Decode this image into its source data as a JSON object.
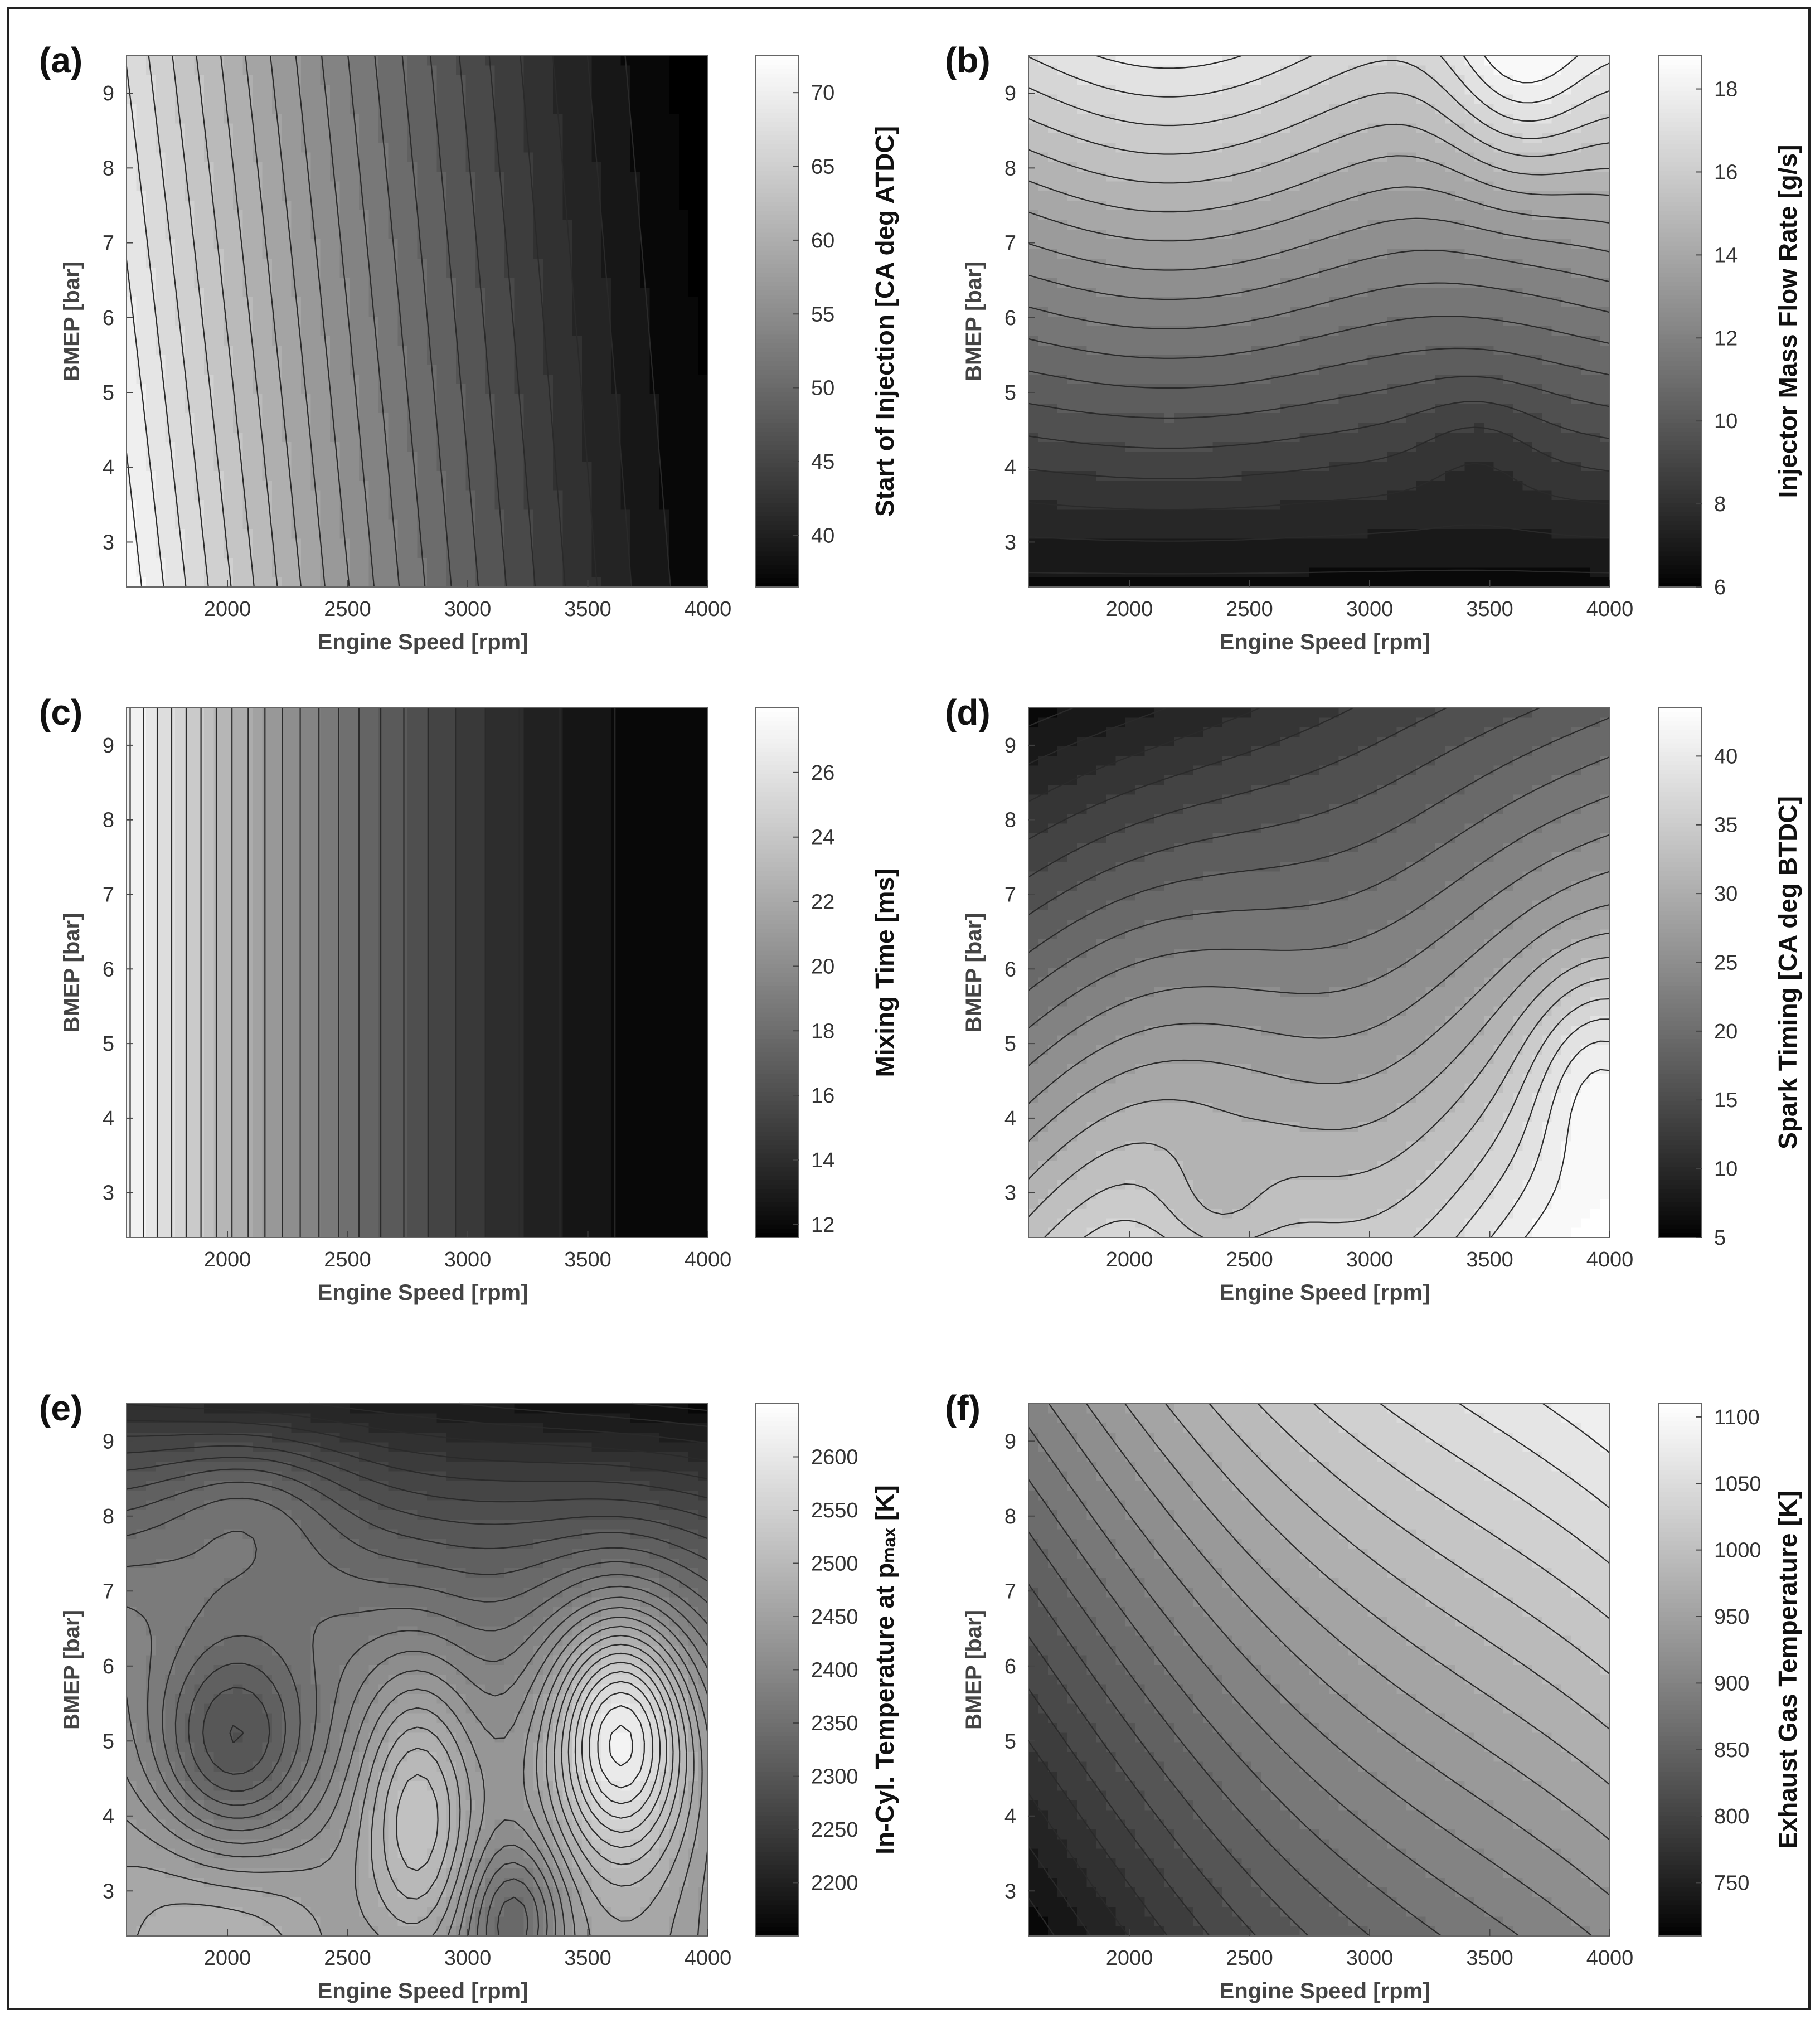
{
  "chart_data": [
    {
      "type": "heatmap",
      "panel_label": "(a)",
      "xlabel": "Engine Speed [rpm]",
      "ylabel": "BMEP [bar]",
      "colorbar_label": "Start of Injection [CA deg ATDC]",
      "xlim": [
        1580,
        4000
      ],
      "ylim": [
        2.4,
        9.5
      ],
      "xticks": [
        2000,
        2500,
        3000,
        3500,
        4000
      ],
      "yticks": [
        3,
        4,
        5,
        6,
        7,
        8,
        9
      ],
      "clim": [
        36.5,
        72.5
      ],
      "cticks": [
        40,
        45,
        50,
        55,
        60,
        65,
        70
      ],
      "z_corners": {
        "low_speed_low_bmep": 72.0,
        "low_speed_high_bmep": 68.0,
        "high_speed_low_bmep": 41.0,
        "high_speed_high_bmep": 37.0
      },
      "levels": 22
    },
    {
      "type": "heatmap",
      "panel_label": "(b)",
      "xlabel": "Engine Speed [rpm]",
      "ylabel": "BMEP [bar]",
      "colorbar_label": "Injector Mass Flow Rate [g/s]",
      "xlim": [
        1580,
        4000
      ],
      "ylim": [
        2.4,
        9.5
      ],
      "xticks": [
        2000,
        2500,
        3000,
        3500,
        4000
      ],
      "yticks": [
        3,
        4,
        5,
        6,
        7,
        8,
        9
      ],
      "clim": [
        6,
        18.8
      ],
      "cticks": [
        6,
        8,
        10,
        12,
        14,
        16,
        18
      ],
      "z_corners": {
        "low_speed_low_bmep": 6.5,
        "low_speed_high_bmep": 16.0,
        "high_speed_low_bmep": 6.8,
        "high_speed_high_bmep": 17.0
      },
      "peak": {
        "x": 3620,
        "y": 9.4,
        "value": 18.5
      },
      "levels": 20
    },
    {
      "type": "heatmap",
      "panel_label": "(c)",
      "xlabel": "Engine Speed [rpm]",
      "ylabel": "BMEP [bar]",
      "colorbar_label": "Mixing Time [ms]",
      "xlim": [
        1580,
        4000
      ],
      "ylim": [
        2.4,
        9.5
      ],
      "xticks": [
        2000,
        2500,
        3000,
        3500,
        4000
      ],
      "yticks": [
        3,
        4,
        5,
        6,
        7,
        8,
        9
      ],
      "clim": [
        11.6,
        28
      ],
      "cticks": [
        12,
        14,
        16,
        18,
        20,
        22,
        24,
        26
      ],
      "z_corners": {
        "low_speed_low_bmep": 27.5,
        "low_speed_high_bmep": 27.5,
        "high_speed_low_bmep": 11.8,
        "high_speed_high_bmep": 11.8
      },
      "levels": 24
    },
    {
      "type": "heatmap",
      "panel_label": "(d)",
      "xlabel": "Engine Speed [rpm]",
      "ylabel": "BMEP [bar]",
      "colorbar_label": "Spark Timing [CA deg BTDC]",
      "xlim": [
        1580,
        4000
      ],
      "ylim": [
        2.4,
        9.5
      ],
      "xticks": [
        2000,
        2500,
        3000,
        3500,
        4000
      ],
      "yticks": [
        3,
        4,
        5,
        6,
        7,
        8,
        9
      ],
      "clim": [
        5,
        43.5
      ],
      "cticks": [
        5,
        10,
        15,
        20,
        25,
        30,
        35,
        40
      ],
      "z_corners": {
        "low_speed_low_bmep": 33.0,
        "low_speed_high_bmep": 6.0,
        "high_speed_low_bmep": 41.0,
        "high_speed_high_bmep": 18.0
      },
      "peak": {
        "x": 3950,
        "y": 4.5,
        "value": 43.0
      },
      "levels": 20
    },
    {
      "type": "heatmap",
      "panel_label": "(e)",
      "xlabel": "Engine Speed [rpm]",
      "ylabel": "BMEP [bar]",
      "colorbar_label": "In-Cyl. Temperature at pₘₐₓ [K]",
      "xlim": [
        1580,
        4000
      ],
      "ylim": [
        2.4,
        9.5
      ],
      "xticks": [
        2000,
        2500,
        3000,
        3500,
        4000
      ],
      "yticks": [
        3,
        4,
        5,
        6,
        7,
        8,
        9
      ],
      "clim": [
        2150,
        2650
      ],
      "cticks": [
        2200,
        2250,
        2300,
        2350,
        2400,
        2450,
        2500,
        2550,
        2600
      ],
      "z_corners": {
        "low_speed_low_bmep": 2470,
        "low_speed_high_bmep": 2380,
        "high_speed_low_bmep": 2390,
        "high_speed_high_bmep": 2160
      },
      "features": [
        {
          "kind": "min",
          "x": 2020,
          "y": 4.9,
          "value": 2310
        },
        {
          "kind": "max",
          "x": 3640,
          "y": 5.1,
          "value": 2640
        },
        {
          "kind": "max",
          "x": 2800,
          "y": 4.2,
          "value": 2560
        }
      ],
      "levels": 28
    },
    {
      "type": "heatmap",
      "panel_label": "(f)",
      "xlabel": "Engine Speed [rpm]",
      "ylabel": "BMEP [bar]",
      "colorbar_label": "Exhaust Gas Temperature [K]",
      "xlim": [
        1580,
        4000
      ],
      "ylim": [
        2.4,
        9.5
      ],
      "xticks": [
        2000,
        2500,
        3000,
        3500,
        4000
      ],
      "yticks": [
        3,
        4,
        5,
        6,
        7,
        8,
        9
      ],
      "clim": [
        710,
        1110
      ],
      "cticks": [
        750,
        800,
        850,
        900,
        950,
        1000,
        1050,
        1100
      ],
      "z_corners": {
        "low_speed_low_bmep": 715,
        "low_speed_high_bmep": 900,
        "high_speed_low_bmep": 930,
        "high_speed_high_bmep": 1105
      },
      "levels": 22
    }
  ]
}
